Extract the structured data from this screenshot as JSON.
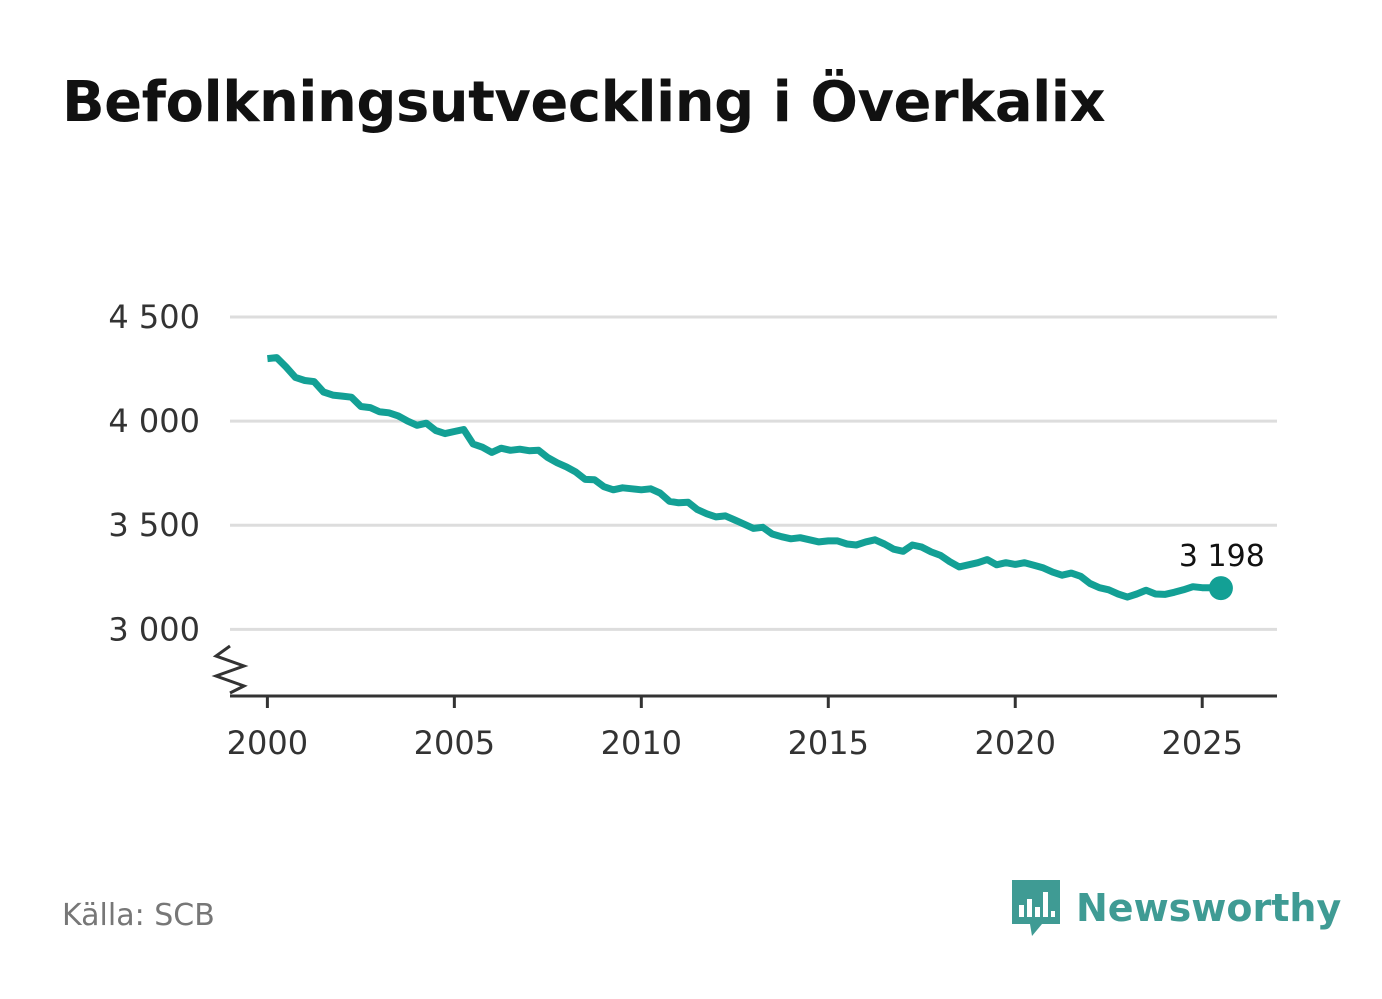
{
  "title": "Befolkningsutveckling i Överkalix",
  "source": "Källa: SCB",
  "brand": {
    "name": "Newsworthy",
    "icon": "newsworthy-logo-icon",
    "color": "#3f9b94"
  },
  "colors": {
    "line": "#13a095",
    "grid": "#dddddd",
    "axis": "#333333"
  },
  "chart_data": {
    "type": "line",
    "title": "Befolkningsutveckling i Överkalix",
    "xlabel": "",
    "ylabel": "",
    "xlim": [
      1999,
      2027
    ],
    "ylim": [
      2680,
      4500
    ],
    "x_ticks": [
      2000,
      2005,
      2010,
      2015,
      2020,
      2025
    ],
    "x_tick_labels": [
      "2000",
      "2005",
      "2010",
      "2015",
      "2020",
      "2025"
    ],
    "y_ticks": [
      3000,
      3500,
      4000,
      4500
    ],
    "y_tick_labels": [
      "3 000",
      "3 500",
      "4 000",
      "4 500"
    ],
    "axis_break": true,
    "grid": "horizontal",
    "last_value_label": "3 198",
    "series": [
      {
        "x": [
          2000.0,
          2000.25,
          2000.5,
          2000.75,
          2001.0,
          2001.25,
          2001.5,
          2001.75,
          2002.0,
          2002.25,
          2002.5,
          2002.75,
          2003.0,
          2003.25,
          2003.5,
          2003.75,
          2004.0,
          2004.25,
          2004.5,
          2004.75,
          2005.0,
          2005.25,
          2005.5,
          2005.75,
          2006.0,
          2006.25,
          2006.5,
          2006.75,
          2007.0,
          2007.25,
          2007.5,
          2007.75,
          2008.0,
          2008.25,
          2008.5,
          2008.75,
          2009.0,
          2009.25,
          2009.5,
          2009.75,
          2010.0,
          2010.25,
          2010.5,
          2010.75,
          2011.0,
          2011.25,
          2011.5,
          2011.75,
          2012.0,
          2012.25,
          2012.5,
          2012.75,
          2013.0,
          2013.25,
          2013.5,
          2013.75,
          2014.0,
          2014.25,
          2014.5,
          2014.75,
          2015.0,
          2015.25,
          2015.5,
          2015.75,
          2016.0,
          2016.25,
          2016.5,
          2016.75,
          2017.0,
          2017.25,
          2017.5,
          2017.75,
          2018.0,
          2018.25,
          2018.5,
          2018.75,
          2019.0,
          2019.25,
          2019.5,
          2019.75,
          2020.0,
          2020.25,
          2020.5,
          2020.75,
          2021.0,
          2021.25,
          2021.5,
          2021.75,
          2022.0,
          2022.25,
          2022.5,
          2022.75,
          2023.0,
          2023.25,
          2023.5,
          2023.75,
          2024.0,
          2024.25,
          2024.5,
          2024.75,
          2025.0,
          2025.25,
          2025.5
        ],
        "y": [
          4300,
          4305,
          4260,
          4210,
          4195,
          4190,
          4140,
          4125,
          4120,
          4115,
          4070,
          4065,
          4045,
          4040,
          4025,
          4000,
          3980,
          3990,
          3955,
          3940,
          3950,
          3960,
          3890,
          3875,
          3850,
          3870,
          3860,
          3865,
          3858,
          3860,
          3825,
          3800,
          3780,
          3755,
          3720,
          3718,
          3685,
          3670,
          3680,
          3675,
          3670,
          3675,
          3655,
          3615,
          3608,
          3610,
          3575,
          3555,
          3540,
          3545,
          3525,
          3505,
          3485,
          3490,
          3458,
          3445,
          3435,
          3440,
          3430,
          3420,
          3425,
          3425,
          3410,
          3405,
          3420,
          3430,
          3410,
          3385,
          3375,
          3405,
          3395,
          3372,
          3355,
          3325,
          3300,
          3310,
          3320,
          3335,
          3310,
          3320,
          3312,
          3320,
          3308,
          3295,
          3275,
          3260,
          3270,
          3255,
          3220,
          3200,
          3190,
          3170,
          3155,
          3170,
          3188,
          3170,
          3168,
          3178,
          3190,
          3205,
          3200,
          3200,
          3198
        ]
      }
    ]
  }
}
